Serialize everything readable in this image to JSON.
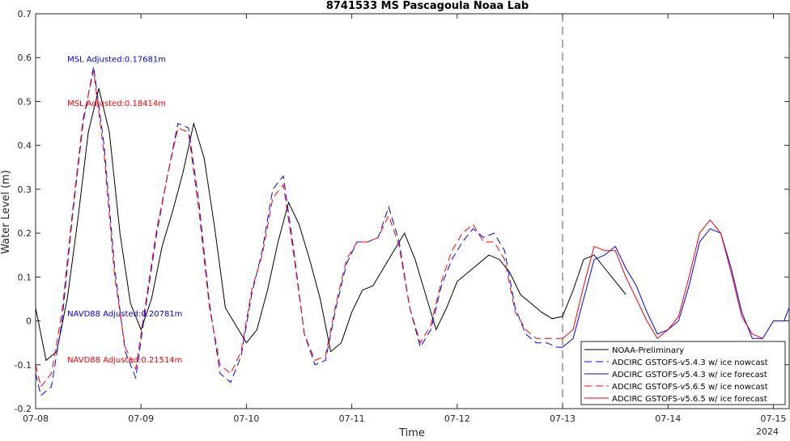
{
  "chart_data": {
    "type": "line",
    "title": "8741533 MS Pascagoula Noaa Lab",
    "xlabel": "Time",
    "ylabel": "Water Level (m)",
    "xlim": [
      0,
      7.15
    ],
    "ylim": [
      -0.2,
      0.7
    ],
    "x_ticks": [
      0,
      1,
      2,
      3,
      4,
      5,
      6,
      7
    ],
    "x_tick_labels": [
      "07-08",
      "07-09",
      "07-10",
      "07-11",
      "07-12",
      "07-13",
      "07-14",
      "07-15"
    ],
    "x_axis_year": "2024",
    "y_ticks": [
      -0.2,
      -0.1,
      0,
      0.1,
      0.2,
      0.3,
      0.4,
      0.5,
      0.6,
      0.7
    ],
    "y_tick_labels": [
      "-0.2",
      "-0.1",
      "0",
      "0.1",
      "0.2",
      "0.3",
      "0.4",
      "0.5",
      "0.6",
      "0.7"
    ],
    "grid": false,
    "legend_placement": "bottom-right",
    "forecast_start_x": 5.0,
    "annotations": [
      {
        "text": "MSL Adjusted:0.17681m",
        "color": "#0000ff",
        "x": 0.3,
        "y": 0.59
      },
      {
        "text": "MSL Adjusted:0.18414m",
        "color": "#ff0000",
        "x": 0.3,
        "y": 0.49
      },
      {
        "text": "NAVD88 Adjusted:0.20781m",
        "color": "#0000ff",
        "x": 0.3,
        "y": 0.01
      },
      {
        "text": "NAVD88 Adjusted:0.21514m",
        "color": "#ff0000",
        "x": 0.3,
        "y": -0.095
      }
    ],
    "series": [
      {
        "name": "NOAA-Preliminary",
        "color": "#000000",
        "dash": "solid",
        "x": [
          0,
          0.1,
          0.2,
          0.3,
          0.4,
          0.5,
          0.6,
          0.7,
          0.8,
          0.9,
          1.0,
          1.1,
          1.2,
          1.3,
          1.4,
          1.5,
          1.6,
          1.7,
          1.8,
          1.9,
          2.0,
          2.1,
          2.2,
          2.3,
          2.4,
          2.5,
          2.6,
          2.7,
          2.8,
          2.9,
          3.0,
          3.1,
          3.2,
          3.3,
          3.4,
          3.5,
          3.6,
          3.7,
          3.8,
          3.9,
          4.0,
          4.1,
          4.2,
          4.3,
          4.4,
          4.5,
          4.6,
          4.7,
          4.8,
          4.9,
          5.0,
          5.1,
          5.2,
          5.3,
          5.4,
          5.5,
          5.6
        ],
        "y": [
          0.03,
          -0.09,
          -0.07,
          0.05,
          0.23,
          0.43,
          0.53,
          0.43,
          0.2,
          0.04,
          -0.02,
          0.05,
          0.17,
          0.25,
          0.34,
          0.45,
          0.37,
          0.21,
          0.03,
          -0.01,
          -0.05,
          -0.02,
          0.07,
          0.18,
          0.27,
          0.22,
          0.14,
          0.05,
          -0.07,
          -0.05,
          0.02,
          0.07,
          0.08,
          0.12,
          0.16,
          0.2,
          0.14,
          0.06,
          -0.02,
          0.03,
          0.09,
          0.11,
          0.13,
          0.15,
          0.14,
          0.11,
          0.06,
          0.04,
          0.02,
          0.005,
          0.01,
          0.07,
          0.14,
          0.15,
          0.12,
          0.09,
          0.06
        ]
      },
      {
        "name": "ADCIRC GSTOFS-v5.4.3 w/ ice nowcast",
        "color": "#0000ff",
        "dash": "dashed",
        "x": [
          0,
          0.05,
          0.15,
          0.25,
          0.35,
          0.45,
          0.55,
          0.65,
          0.75,
          0.85,
          0.95,
          1.05,
          1.15,
          1.25,
          1.35,
          1.45,
          1.55,
          1.65,
          1.75,
          1.85,
          1.95,
          2.05,
          2.15,
          2.25,
          2.35,
          2.45,
          2.55,
          2.65,
          2.75,
          2.85,
          2.95,
          3.05,
          3.15,
          3.25,
          3.35,
          3.45,
          3.55,
          3.65,
          3.75,
          3.85,
          3.95,
          4.05,
          4.15,
          4.25,
          4.35,
          4.45,
          4.55,
          4.65,
          4.75,
          4.85,
          4.95,
          5.0
        ],
        "y": [
          -0.12,
          -0.17,
          -0.15,
          0.0,
          0.24,
          0.45,
          0.58,
          0.4,
          0.12,
          -0.07,
          -0.13,
          0.04,
          0.2,
          0.33,
          0.45,
          0.44,
          0.27,
          0.04,
          -0.12,
          -0.14,
          -0.08,
          0.06,
          0.16,
          0.3,
          0.33,
          0.16,
          -0.03,
          -0.1,
          -0.09,
          0.03,
          0.13,
          0.18,
          0.18,
          0.19,
          0.26,
          0.18,
          0.03,
          -0.06,
          -0.02,
          0.08,
          0.14,
          0.18,
          0.21,
          0.19,
          0.2,
          0.16,
          0.03,
          -0.03,
          -0.05,
          -0.05,
          -0.06,
          -0.06
        ]
      },
      {
        "name": "ADCIRC GSTOFS-v5.4.3 w/ ice forecast",
        "color": "#0000ff",
        "dash": "solid",
        "x": [
          5.0,
          5.1,
          5.2,
          5.3,
          5.4,
          5.5,
          5.6,
          5.7,
          5.8,
          5.9,
          6.0,
          6.1,
          6.2,
          6.3,
          6.4,
          6.5,
          6.6,
          6.7,
          6.8,
          6.9,
          7.0,
          7.1,
          7.15
        ],
        "y": [
          -0.06,
          -0.04,
          0.05,
          0.14,
          0.15,
          0.17,
          0.12,
          0.08,
          0.02,
          -0.03,
          -0.02,
          0.0,
          0.08,
          0.18,
          0.21,
          0.2,
          0.12,
          0.02,
          -0.04,
          -0.04,
          0.0,
          0.0,
          0.03
        ]
      },
      {
        "name": "ADCIRC GSTOFS-v5.6.5 w/ ice nowcast",
        "color": "#ff0000",
        "dash": "dashed",
        "x": [
          0,
          0.05,
          0.15,
          0.25,
          0.35,
          0.45,
          0.55,
          0.65,
          0.75,
          0.85,
          0.95,
          1.05,
          1.15,
          1.25,
          1.35,
          1.45,
          1.55,
          1.65,
          1.75,
          1.85,
          1.95,
          2.05,
          2.15,
          2.25,
          2.35,
          2.45,
          2.55,
          2.65,
          2.75,
          2.85,
          2.95,
          3.05,
          3.15,
          3.25,
          3.35,
          3.45,
          3.55,
          3.65,
          3.75,
          3.85,
          3.95,
          4.05,
          4.15,
          4.25,
          4.35,
          4.45,
          4.55,
          4.65,
          4.75,
          4.85,
          4.95,
          5.0
        ],
        "y": [
          -0.1,
          -0.15,
          -0.12,
          0.02,
          0.25,
          0.46,
          0.57,
          0.38,
          0.1,
          -0.06,
          -0.11,
          0.05,
          0.21,
          0.33,
          0.44,
          0.43,
          0.25,
          0.03,
          -0.1,
          -0.12,
          -0.07,
          0.07,
          0.15,
          0.28,
          0.31,
          0.15,
          -0.03,
          -0.09,
          -0.08,
          0.04,
          0.14,
          0.18,
          0.18,
          0.19,
          0.24,
          0.17,
          0.03,
          -0.05,
          -0.01,
          0.09,
          0.16,
          0.2,
          0.22,
          0.18,
          0.18,
          0.14,
          0.02,
          -0.02,
          -0.04,
          -0.04,
          -0.04,
          -0.04
        ]
      },
      {
        "name": "ADCIRC GSTOFS-v5.6.5 w/ ice forecast",
        "color": "#ff0000",
        "dash": "solid",
        "x": [
          5.0,
          5.1,
          5.2,
          5.3,
          5.4,
          5.5,
          5.6,
          5.7,
          5.8,
          5.9,
          6.0,
          6.1,
          6.2,
          6.3,
          6.4,
          6.5,
          6.6,
          6.7,
          6.8,
          6.9
        ],
        "y": [
          -0.04,
          -0.02,
          0.08,
          0.17,
          0.16,
          0.16,
          0.1,
          0.05,
          0.0,
          -0.04,
          -0.02,
          0.01,
          0.1,
          0.2,
          0.23,
          0.2,
          0.11,
          0.01,
          -0.03,
          -0.04
        ]
      }
    ]
  }
}
